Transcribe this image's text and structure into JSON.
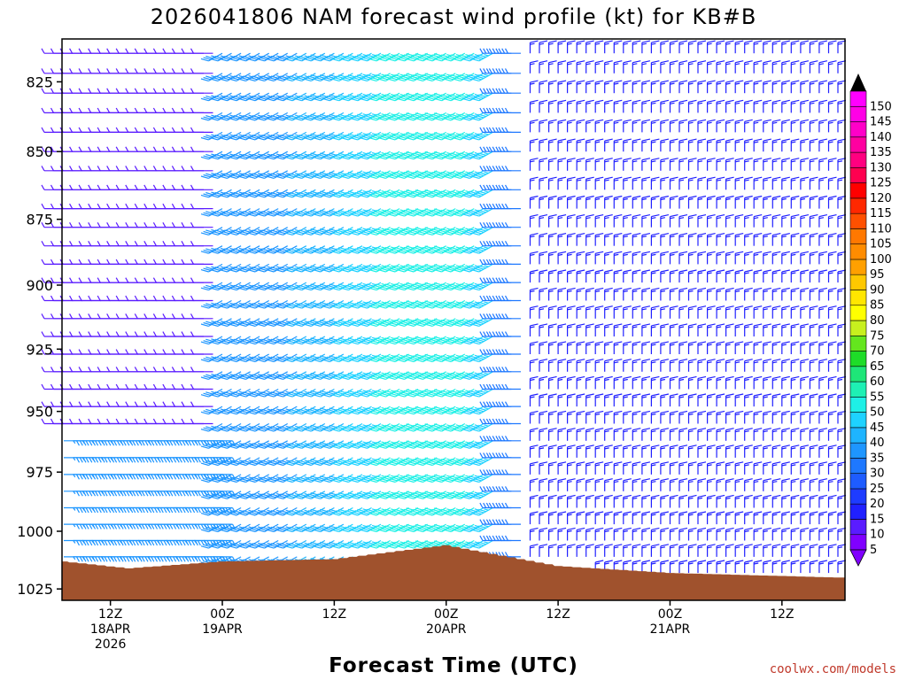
{
  "chart_data": {
    "type": "wind-barb time-height profile",
    "title": "2026041806 NAM forecast wind profile (kt) for KB#B",
    "xlabel": "Forecast Time (UTC)",
    "ylabel": "",
    "y_axis": {
      "scale": "pressure (hPa), increasing downward",
      "range": [
        810,
        1030
      ],
      "ticks": [
        "825",
        "850",
        "875",
        "900",
        "925",
        "950",
        "975",
        "1000",
        "1025"
      ]
    },
    "x_axis": {
      "range": [
        "2026-04-18 07Z",
        "2026-04-21 18Z"
      ],
      "time_step_hours": 1,
      "ticks": [
        {
          "time": "2026-04-18 12Z",
          "label": [
            "12Z",
            "18APR",
            "2026"
          ]
        },
        {
          "time": "2026-04-19 00Z",
          "label": [
            "00Z",
            "19APR"
          ]
        },
        {
          "time": "2026-04-19 12Z",
          "label": [
            "12Z"
          ]
        },
        {
          "time": "2026-04-20 00Z",
          "label": [
            "00Z",
            "20APR"
          ]
        },
        {
          "time": "2026-04-20 12Z",
          "label": [
            "12Z"
          ]
        },
        {
          "time": "2026-04-21 00Z",
          "label": [
            "00Z",
            "21APR"
          ]
        },
        {
          "time": "2026-04-21 12Z",
          "label": [
            "12Z"
          ]
        }
      ]
    },
    "colorbar": {
      "units": "kt",
      "levels": [
        "5",
        "10",
        "15",
        "20",
        "25",
        "30",
        "35",
        "40",
        "45",
        "50",
        "55",
        "60",
        "65",
        "70",
        "75",
        "80",
        "85",
        "90",
        "95",
        "100",
        "105",
        "110",
        "115",
        "120",
        "125",
        "130",
        "135",
        "140",
        "145",
        "150"
      ],
      "colors": [
        "#8000ff",
        "#5a1cff",
        "#2020ff",
        "#1e3cff",
        "#1e5cff",
        "#1e78ff",
        "#1e96ff",
        "#1eb4ff",
        "#1ed2ff",
        "#1ef0e6",
        "#1ef0b4",
        "#1ee678",
        "#1edc28",
        "#64e61e",
        "#c8f01e",
        "#ffff00",
        "#ffe600",
        "#ffc800",
        "#ffa000",
        "#ff8c00",
        "#ff7800",
        "#ff5000",
        "#ff2800",
        "#ff0000",
        "#ff0050",
        "#ff0080",
        "#ff00a0",
        "#ff00c8",
        "#ff00e6",
        "#ff00ff"
      ]
    },
    "terrain_color": "#a0522d",
    "surface_pressure_approx": [
      {
        "time": "2026-04-18 07Z",
        "p": 1013
      },
      {
        "time": "2026-04-18 14Z",
        "p": 1016
      },
      {
        "time": "2026-04-19 00Z",
        "p": 1013
      },
      {
        "time": "2026-04-19 12Z",
        "p": 1012
      },
      {
        "time": "2026-04-20 00Z",
        "p": 1006
      },
      {
        "time": "2026-04-20 12Z",
        "p": 1015
      },
      {
        "time": "2026-04-21 00Z",
        "p": 1018
      },
      {
        "time": "2026-04-21 18Z",
        "p": 1020
      }
    ],
    "wind_regimes_approx": [
      {
        "from": "2026-04-18 07Z",
        "to": "2026-04-18 23Z",
        "levels": "upper",
        "speed_kt": 10,
        "direction": "westerly"
      },
      {
        "from": "2026-04-18 07Z",
        "to": "2026-04-18 23Z",
        "levels": "low",
        "speed_kt": 35,
        "direction": "easterly"
      },
      {
        "from": "2026-04-19 00Z",
        "to": "2026-04-20 05Z",
        "levels": "all",
        "speed_kt": 35,
        "direction": "southwesterly",
        "max_kt": 50
      },
      {
        "from": "2026-04-20 06Z",
        "to": "2026-04-20 08Z",
        "levels": "all",
        "speed_kt": 30,
        "direction": "westerly"
      },
      {
        "from": "2026-04-20 09Z",
        "to": "2026-04-21 18Z",
        "levels": "all",
        "speed_kt": 15,
        "direction": "northerly"
      }
    ]
  },
  "credit": "coolwx.com/models"
}
